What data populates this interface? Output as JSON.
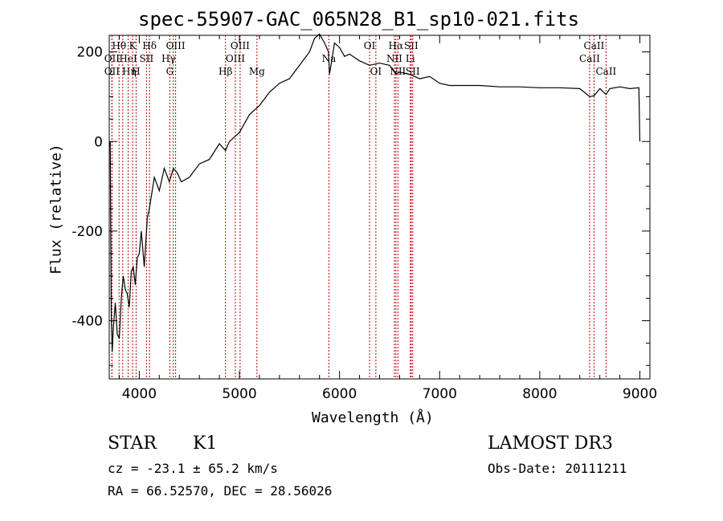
{
  "chart_data": {
    "type": "line",
    "title": "spec-55907-GAC_065N28_B1_sp10-021.fits",
    "xlabel": "Wavelength (Å)",
    "ylabel": "Flux (relative)",
    "xlim": [
      3700,
      9100
    ],
    "ylim": [
      -530,
      237
    ],
    "xticks": [
      4000,
      5000,
      6000,
      7000,
      8000,
      9000
    ],
    "xtick_labels": [
      "4000",
      "5000",
      "6000",
      "7000",
      "8000",
      "9000"
    ],
    "yticks": [
      -400,
      -200,
      0,
      200
    ],
    "ytick_labels": [
      "-400",
      "-200",
      "0",
      "200"
    ],
    "series": [
      {
        "name": "flux",
        "x": [
          3700,
          3710,
          3720,
          3730,
          3740,
          3760,
          3780,
          3800,
          3820,
          3840,
          3860,
          3880,
          3900,
          3920,
          3940,
          3960,
          3980,
          4000,
          4020,
          4050,
          4080,
          4100,
          4150,
          4200,
          4250,
          4300,
          4340,
          4380,
          4420,
          4500,
          4600,
          4700,
          4800,
          4861,
          4900,
          5000,
          5100,
          5200,
          5300,
          5400,
          5500,
          5600,
          5700,
          5750,
          5800,
          5850,
          5890,
          5900,
          5950,
          6000,
          6050,
          6100,
          6200,
          6300,
          6400,
          6500,
          6563,
          6600,
          6700,
          6800,
          6900,
          7000,
          7100,
          7200,
          7400,
          7600,
          7800,
          8000,
          8200,
          8400,
          8498,
          8542,
          8600,
          8662,
          8700,
          8800,
          8900,
          8990,
          9000
        ],
        "values": [
          -10,
          0,
          -380,
          -470,
          -420,
          -360,
          -430,
          -440,
          -350,
          -300,
          -330,
          -340,
          -370,
          -290,
          -280,
          -320,
          -260,
          -250,
          -200,
          -280,
          -170,
          -150,
          -80,
          -110,
          -60,
          -90,
          -60,
          -70,
          -90,
          -80,
          -50,
          -40,
          -5,
          -20,
          0,
          20,
          60,
          80,
          110,
          130,
          140,
          170,
          200,
          230,
          240,
          220,
          200,
          150,
          220,
          210,
          190,
          195,
          180,
          170,
          175,
          170,
          150,
          155,
          150,
          140,
          145,
          130,
          125,
          125,
          125,
          122,
          122,
          120,
          120,
          118,
          100,
          102,
          118,
          105,
          118,
          122,
          118,
          120,
          0
        ]
      }
    ],
    "lines": [
      {
        "name": "OII",
        "x": 3727,
        "row": 2,
        "dx": 0
      },
      {
        "name": "Hθ",
        "x": 3798,
        "row": 0,
        "dx": 0
      },
      {
        "name": "OII",
        "x": 3727,
        "row": 1,
        "dx": 0
      },
      {
        "name": "Hη",
        "x": 3835,
        "row": 2,
        "dx": 8
      },
      {
        "name": "HeI",
        "x": 3889,
        "row": 1,
        "dx": 0
      },
      {
        "name": "K",
        "x": 3934,
        "row": 0,
        "dx": 0
      },
      {
        "name": "H",
        "x": 3968,
        "row": 2,
        "dx": 0
      },
      {
        "name": "SII",
        "x": 4072,
        "row": 1,
        "dx": 0
      },
      {
        "name": "Hδ",
        "x": 4102,
        "row": 0,
        "dx": 0
      },
      {
        "name": "G",
        "x": 4305,
        "row": 2,
        "dx": 0
      },
      {
        "name": "Hγ",
        "x": 4340,
        "row": 1,
        "dx": -6
      },
      {
        "name": "OIII",
        "x": 4363,
        "row": 0,
        "dx": 0
      },
      {
        "name": "Hβ",
        "x": 4861,
        "row": 2,
        "dx": 0
      },
      {
        "name": "OIII",
        "x": 4959,
        "row": 1,
        "dx": 0
      },
      {
        "name": "OIII",
        "x": 5007,
        "row": 0,
        "dx": 0
      },
      {
        "name": "Mg",
        "x": 5175,
        "row": 2,
        "dx": 0
      },
      {
        "name": "Na",
        "x": 5894,
        "row": 1,
        "dx": 0
      },
      {
        "name": "OI",
        "x": 6300,
        "row": 0,
        "dx": 0
      },
      {
        "name": "OI",
        "x": 6363,
        "row": 2,
        "dx": 0
      },
      {
        "name": "NII",
        "x": 6548,
        "row": 1,
        "dx": 0
      },
      {
        "name": "Hα",
        "x": 6563,
        "row": 0,
        "dx": 0
      },
      {
        "name": "NII",
        "x": 6583,
        "row": 2,
        "dx": 0
      },
      {
        "name": "Li",
        "x": 6707,
        "row": 1,
        "dx": 0
      },
      {
        "name": "SII",
        "x": 6716,
        "row": 0,
        "dx": 0
      },
      {
        "name": "SII",
        "x": 6731,
        "row": 2,
        "dx": 0
      },
      {
        "name": "CaII",
        "x": 8498,
        "row": 1,
        "dx": 0
      },
      {
        "name": "CaII",
        "x": 8542,
        "row": 0,
        "dx": 0
      },
      {
        "name": "CaII",
        "x": 8662,
        "row": 2,
        "dx": 0
      }
    ]
  },
  "footer": {
    "class_label": "STAR",
    "subclass": "K1",
    "survey": "LAMOST DR3",
    "cz": "cz = -23.1 ± 65.2 km/s",
    "obs_date": "Obs-Date: 20111211",
    "coords": "RA =  66.52570, DEC =  28.56026"
  }
}
